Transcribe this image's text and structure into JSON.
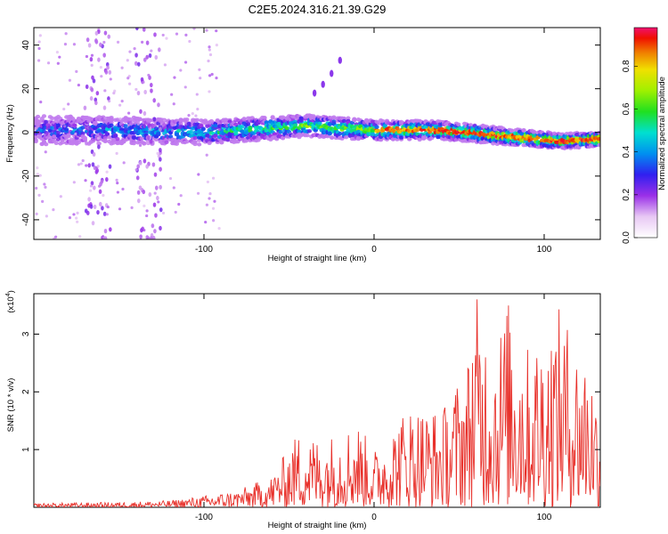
{
  "chart_data": [
    {
      "type": "heatmap",
      "title": "C2E5.2024.316.21.39.G29",
      "xlabel": "Height of straight line (km)",
      "ylabel": "Frequency (Hz)",
      "xlim": [
        -200,
        133
      ],
      "ylim": [
        -49,
        48
      ],
      "xticks": [
        -100,
        0,
        100
      ],
      "yticks": [
        -40,
        -20,
        0,
        20,
        40
      ],
      "colorbar": {
        "label": "Normalized spectral amplitude",
        "range": [
          0.0,
          0.98
        ],
        "ticks": [
          0.0,
          0.2,
          0.4,
          0.6,
          0.8
        ],
        "tick_labels": [
          "0.0",
          "0.2",
          "0.4",
          "0.6",
          "0.8"
        ],
        "colormap": "rainbow (white → magenta → blue → cyan → green → yellow → red)"
      },
      "ridge_center_hz": {
        "x": [
          -200,
          -150,
          -100,
          -60,
          -40,
          -20,
          0,
          40,
          80,
          110,
          133
        ],
        "y": [
          1,
          1,
          0,
          2,
          3,
          2,
          1,
          1,
          -2,
          -4,
          -3
        ]
      },
      "side_branch": {
        "x": [
          -35,
          -30,
          -25,
          -20
        ],
        "y": [
          18,
          22,
          27,
          33
        ]
      },
      "noise_bands_x": [
        [
          -170,
          -155
        ],
        [
          -140,
          -125
        ]
      ]
    },
    {
      "type": "line",
      "xlabel": "Height of straight line (km)",
      "ylabel": "SNR (10 * v/v)",
      "y_multiplier_label": "(x10",
      "y_multiplier_exp": "4",
      "xlim": [
        -200,
        133
      ],
      "ylim": [
        0,
        3.7
      ],
      "xticks": [
        -100,
        0,
        100
      ],
      "yticks": [
        1,
        2,
        3
      ],
      "grid": false,
      "series": [
        {
          "color": "#e8302a",
          "envelope": {
            "x": [
              -200,
              -150,
              -120,
              -100,
              -80,
              -60,
              -45,
              -30,
              -10,
              0,
              20,
              40,
              55,
              60,
              70,
              80,
              90,
              100,
              110,
              120,
              125,
              130,
              133
            ],
            "y": [
              0.07,
              0.09,
              0.12,
              0.2,
              0.3,
              0.55,
              1.3,
              1.2,
              1.5,
              1.0,
              1.8,
              1.7,
              2.6,
              3.7,
              2.9,
              3.7,
              2.8,
              3.1,
              3.5,
              2.8,
              2.8,
              2.2,
              1.3
            ]
          }
        }
      ]
    }
  ]
}
